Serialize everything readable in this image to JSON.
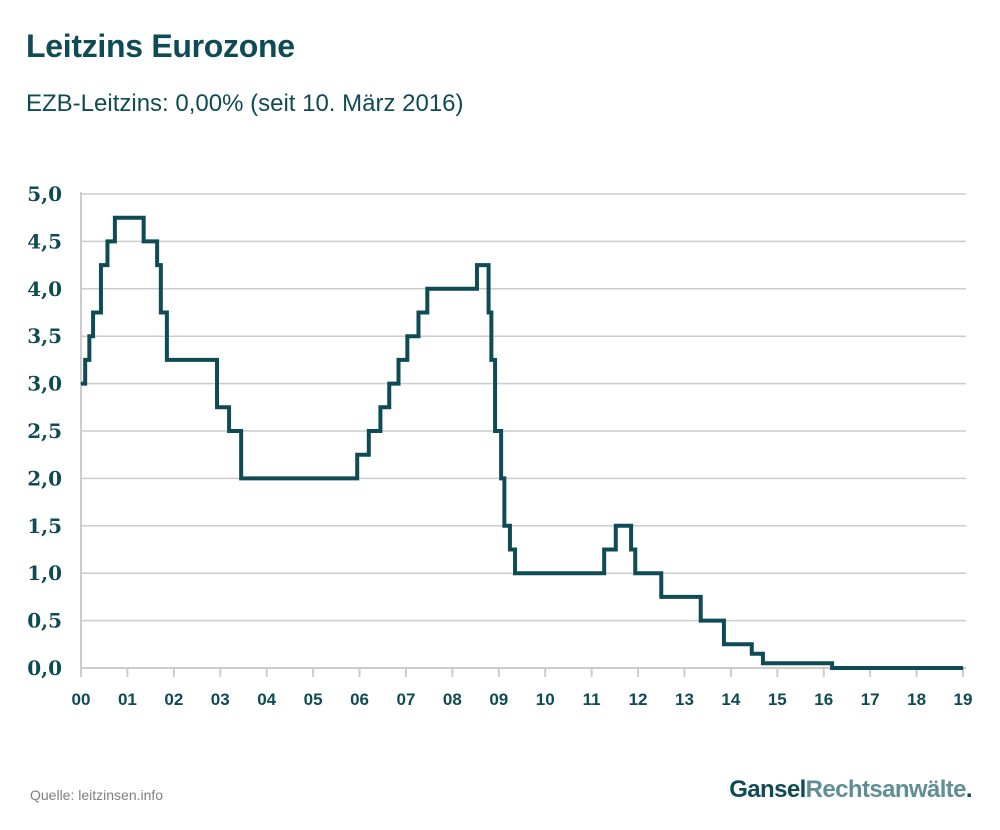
{
  "title": "Leitzins Eurozone",
  "subtitle": "EZB-Leitzins: 0,00% (seit 10. März 2016)",
  "source": "Quelle: leitzinsen.info",
  "brand": {
    "part1": "Gansel",
    "part2": "Rechtsanwälte",
    "part3": "."
  },
  "colors": {
    "line": "#0f4b55",
    "grid": "#cccccc",
    "text": "#0f4b55",
    "source": "#808080",
    "brand_accent": "#5f8f94"
  },
  "chart_data": {
    "type": "line",
    "step": true,
    "title": "Leitzins Eurozone",
    "subtitle": "EZB-Leitzins: 0,00% (seit 10. März 2016)",
    "xlabel": "",
    "ylabel": "",
    "xlim": [
      0,
      19
    ],
    "ylim": [
      0,
      5
    ],
    "grid": true,
    "y_ticks": [
      {
        "value": 0,
        "label": "0,0"
      },
      {
        "value": 0.5,
        "label": "0,5"
      },
      {
        "value": 1,
        "label": "1,0"
      },
      {
        "value": 1.5,
        "label": "1,5"
      },
      {
        "value": 2,
        "label": "2,0"
      },
      {
        "value": 2.5,
        "label": "2,5"
      },
      {
        "value": 3,
        "label": "3,0"
      },
      {
        "value": 3.5,
        "label": "3,5"
      },
      {
        "value": 4,
        "label": "4,0"
      },
      {
        "value": 4.5,
        "label": "4,5"
      },
      {
        "value": 5,
        "label": "5,0"
      }
    ],
    "x_ticks": [
      {
        "value": 0,
        "label": "00"
      },
      {
        "value": 1,
        "label": "01"
      },
      {
        "value": 2,
        "label": "02"
      },
      {
        "value": 3,
        "label": "03"
      },
      {
        "value": 4,
        "label": "04"
      },
      {
        "value": 5,
        "label": "05"
      },
      {
        "value": 6,
        "label": "06"
      },
      {
        "value": 7,
        "label": "07"
      },
      {
        "value": 8,
        "label": "08"
      },
      {
        "value": 9,
        "label": "09"
      },
      {
        "value": 10,
        "label": "10"
      },
      {
        "value": 11,
        "label": "11"
      },
      {
        "value": 12,
        "label": "12"
      },
      {
        "value": 13,
        "label": "13"
      },
      {
        "value": 14,
        "label": "14"
      },
      {
        "value": 15,
        "label": "15"
      },
      {
        "value": 16,
        "label": "16"
      },
      {
        "value": 17,
        "label": "17"
      },
      {
        "value": 18,
        "label": "18"
      },
      {
        "value": 19,
        "label": "19"
      }
    ],
    "series": [
      {
        "values": [
          [
            0.0,
            3.0
          ],
          [
            0.09,
            3.25
          ],
          [
            0.18,
            3.5
          ],
          [
            0.26,
            3.75
          ],
          [
            0.43,
            4.25
          ],
          [
            0.57,
            4.5
          ],
          [
            0.73,
            4.75
          ],
          [
            1.35,
            4.5
          ],
          [
            1.64,
            4.25
          ],
          [
            1.72,
            3.75
          ],
          [
            1.85,
            3.25
          ],
          [
            2.93,
            2.75
          ],
          [
            3.19,
            2.5
          ],
          [
            3.45,
            2.0
          ],
          [
            5.95,
            2.25
          ],
          [
            6.2,
            2.5
          ],
          [
            6.45,
            2.75
          ],
          [
            6.64,
            3.0
          ],
          [
            6.84,
            3.25
          ],
          [
            7.03,
            3.5
          ],
          [
            7.27,
            3.75
          ],
          [
            7.46,
            4.0
          ],
          [
            8.53,
            4.25
          ],
          [
            8.78,
            3.75
          ],
          [
            8.84,
            3.25
          ],
          [
            8.92,
            2.5
          ],
          [
            9.05,
            2.0
          ],
          [
            9.12,
            1.5
          ],
          [
            9.24,
            1.25
          ],
          [
            9.35,
            1.0
          ],
          [
            11.27,
            1.25
          ],
          [
            11.52,
            1.5
          ],
          [
            11.85,
            1.25
          ],
          [
            11.94,
            1.0
          ],
          [
            12.5,
            0.75
          ],
          [
            13.35,
            0.5
          ],
          [
            13.85,
            0.25
          ],
          [
            14.45,
            0.15
          ],
          [
            14.69,
            0.05
          ],
          [
            16.18,
            0.0
          ],
          [
            19.0,
            0.0
          ]
        ]
      }
    ]
  }
}
